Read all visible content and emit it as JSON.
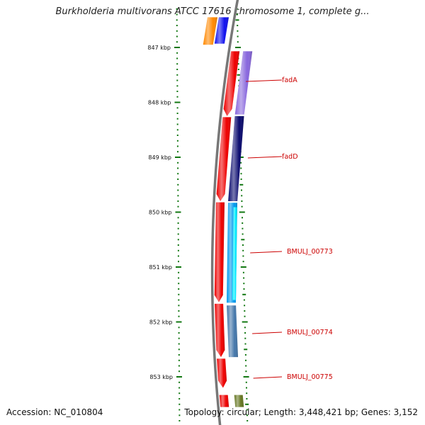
{
  "title": "Burkholderia multivorans ATCC 17616 chromosome 1, complete g...",
  "footer": {
    "accession": "Accession: NC_010804",
    "summary": "Topology: circular; Length: 3,448,421 bp; Genes: 3,152"
  },
  "colors": {
    "backbone": "#777777",
    "tick": "#117711",
    "label_line": "#cc0000",
    "gene_label": "#cc0000"
  },
  "chart_data": {
    "type": "genome-map",
    "axis_unit": "kbp",
    "ruler": [
      {
        "kbp": 847,
        "label": "847 kbp"
      },
      {
        "kbp": 848,
        "label": "848 kbp"
      },
      {
        "kbp": 849,
        "label": "849 kbp"
      },
      {
        "kbp": 850,
        "label": "850 kbp"
      },
      {
        "kbp": 851,
        "label": "851 kbp"
      },
      {
        "kbp": 852,
        "label": "852 kbp"
      },
      {
        "kbp": 853,
        "label": "853 kbp"
      }
    ],
    "genes": [
      {
        "label": "fadA",
        "start_kbp": 847.07,
        "end_kbp": 848.22,
        "color": "#8866dd"
      },
      {
        "label": "fadD",
        "start_kbp": 848.25,
        "end_kbp": 849.8,
        "color": "#0a0a6e"
      },
      {
        "label": "BMULJ_00773",
        "start_kbp": 849.83,
        "end_kbp": 851.65,
        "color": "#0099ee"
      },
      {
        "label": "BMULJ_00774",
        "start_kbp": 851.7,
        "end_kbp": 852.64,
        "color": "#4477aa"
      },
      {
        "label": "BMULJ_00775",
        "start_kbp": null,
        "end_kbp": null,
        "color": null
      }
    ],
    "cds_blocks": [
      {
        "start_kbp": 847.07,
        "end_kbp": 848.25,
        "color": "#ee0000"
      },
      {
        "start_kbp": 848.27,
        "end_kbp": 849.8,
        "color": "#ee0000"
      },
      {
        "start_kbp": 849.82,
        "end_kbp": 851.64,
        "color": "#ee0000"
      },
      {
        "start_kbp": 851.67,
        "end_kbp": 852.64,
        "color": "#ee0000"
      },
      {
        "start_kbp": 852.67,
        "end_kbp": 853.2,
        "color": "#ee0000"
      },
      {
        "start_kbp": 853.33,
        "end_kbp": 853.55,
        "color": "#ee0000"
      }
    ],
    "partial_features": [
      {
        "start_kbp": 846.45,
        "end_kbp": 846.95,
        "color": "#ff8800"
      },
      {
        "start_kbp": 846.45,
        "end_kbp": 846.93,
        "color": "#1111ee"
      },
      {
        "start_kbp": 853.33,
        "end_kbp": 853.55,
        "color": "#667722"
      }
    ]
  }
}
